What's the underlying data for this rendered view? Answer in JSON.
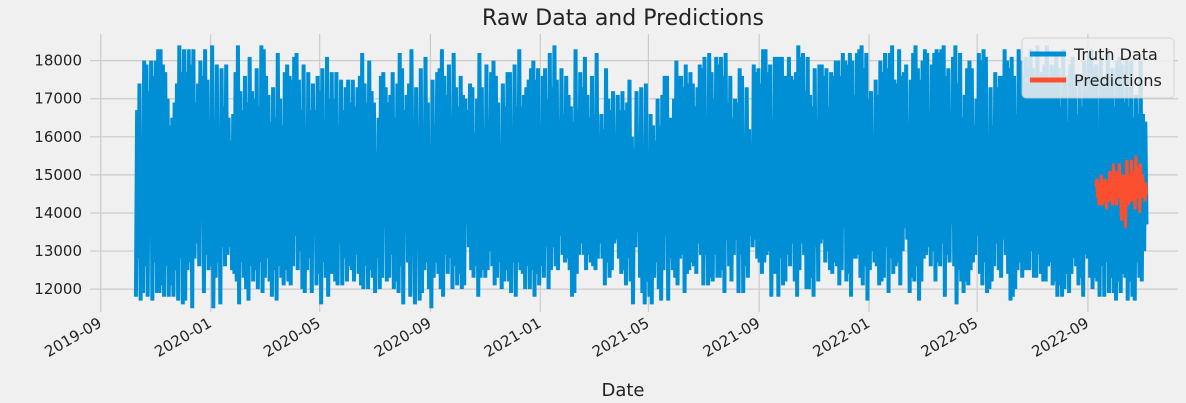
{
  "chart_data": {
    "type": "line",
    "title": "Raw Data and Predictions",
    "xlabel": "Date",
    "ylabel": "",
    "xlim": [
      "2019-08-20",
      "2022-12-10"
    ],
    "ylim": [
      11400,
      18700
    ],
    "grid": true,
    "legend_position": "top-right",
    "x_ticks": [
      {
        "date": "2019-09-01",
        "label": "2019-09"
      },
      {
        "date": "2020-01-01",
        "label": "2020-01"
      },
      {
        "date": "2020-05-01",
        "label": "2020-05"
      },
      {
        "date": "2020-09-01",
        "label": "2020-09"
      },
      {
        "date": "2021-01-01",
        "label": "2021-01"
      },
      {
        "date": "2021-05-01",
        "label": "2021-05"
      },
      {
        "date": "2021-09-01",
        "label": "2021-09"
      },
      {
        "date": "2022-01-01",
        "label": "2022-01"
      },
      {
        "date": "2022-05-01",
        "label": "2022-05"
      },
      {
        "date": "2022-09-01",
        "label": "2022-09"
      }
    ],
    "y_ticks": [
      12000,
      13000,
      14000,
      15000,
      16000,
      17000,
      18000
    ],
    "series": [
      {
        "name": "Truth Data",
        "color": "#008fd5",
        "start_date": "2019-10-10",
        "end_date": "2022-11-05",
        "values": [
          11800,
          16700,
          12800,
          17400,
          11700,
          15300,
          11900,
          18000,
          12600,
          17900,
          11800,
          17200,
          13500,
          18000,
          11700,
          17600,
          12700,
          18000,
          11900,
          18300,
          11900,
          18300,
          12100,
          17900,
          11800,
          17700,
          12600,
          17000,
          11800,
          16300,
          12100,
          16500,
          11800,
          16900,
          12500,
          17400,
          11700,
          18400,
          12800,
          17700,
          11600,
          18300,
          11700,
          17700,
          12500,
          18300,
          12700,
          17900,
          11500,
          18300,
          12800,
          16900,
          13200,
          17400,
          12600,
          18000,
          13800,
          17600,
          11900,
          18300,
          12900,
          17500,
          12500,
          16300,
          12600,
          18400,
          11500,
          16400,
          12300,
          17900,
          12700,
          16200,
          11600,
          17800,
          13100,
          16800,
          12600,
          17900,
          12900,
          16500,
          13100,
          15900,
          12500,
          16600,
          12400,
          17700,
          12200,
          18400,
          11600,
          17200,
          12700,
          16700,
          12300,
          17600,
          12000,
          16900,
          11700,
          18100,
          12600,
          17200,
          12200,
          17000,
          12500,
          17800,
          12000,
          16800,
          12700,
          18400,
          11900,
          18300,
          12300,
          17600,
          12800,
          17100,
          12200,
          16400,
          11800,
          17300,
          12500,
          16500,
          11700,
          18200,
          12600,
          17000,
          12300,
          16300,
          12100,
          17700,
          12500,
          17900,
          12200,
          17600,
          12100,
          17500,
          12600,
          18100,
          13400,
          18200,
          12500,
          17500,
          13000,
          16700,
          12000,
          17900,
          11900,
          16100,
          12500,
          17700,
          12800,
          16700,
          11900,
          17400,
          13400,
          16700,
          12100,
          17600,
          12400,
          17200,
          11600,
          17800,
          12700,
          16300,
          12300,
          18100,
          11800,
          17000,
          12400,
          17700,
          12400,
          17000,
          12200,
          17700,
          12100,
          16300,
          13200,
          17500,
          12100,
          16700,
          12800,
          17300,
          12200,
          17500,
          12600,
          16900,
          12500,
          17500,
          12200,
          16800,
          12900,
          17300,
          12400,
          17600,
          12100,
          18200,
          12000,
          17400,
          12600,
          16900,
          12000,
          18000,
          12500,
          17200,
          12300,
          16900,
          11900,
          15600,
          12800,
          16500,
          12000,
          17600,
          12300,
          17700,
          13600,
          17300,
          12200,
          16900,
          12300,
          17100,
          12900,
          17700,
          12000,
          16500,
          12200,
          17400,
          11900,
          18200,
          12600,
          17800,
          11600,
          16700,
          13500,
          17100,
          12700,
          17400,
          11800,
          18300,
          13800,
          15000,
          11600,
          17300,
          13900,
          16000,
          11700,
          17800,
          11900,
          15800,
          12500,
          18100,
          12700,
          16900,
          12000,
          15800,
          11500,
          17500,
          12300,
          16300,
          12700,
          17700,
          12400,
          17800,
          12000,
          18300,
          11800,
          17600,
          12900,
          17100,
          12400,
          17900,
          12800,
          16500,
          12000,
          18200,
          12600,
          17300,
          12100,
          16800,
          12400,
          17600,
          12000,
          17100,
          12100,
          17000,
          13700,
          16700,
          13100,
          17400,
          12500,
          17300,
          12300,
          16100,
          12600,
          17000,
          11800,
          18200,
          12300,
          17300,
          12500,
          16200,
          12300,
          17900,
          12500,
          16400,
          13000,
          17700,
          12600,
          18000,
          12100,
          17600,
          12300,
          16900,
          12700,
          15300,
          12000,
          17400,
          12200,
          16800,
          12500,
          17700,
          12200,
          17700,
          11900,
          15900,
          12700,
          17900,
          11800,
          16800,
          12700,
          18300,
          12500,
          16800,
          12400,
          17100,
          12000,
          17300,
          12600,
          17500,
          12000,
          17800,
          12500,
          18000,
          11800,
          17500,
          12400,
          17800,
          12100,
          16300,
          12600,
          17600,
          12300,
          17800,
          13100,
          17000,
          12000,
          18200,
          12500,
          17300,
          13100,
          18400,
          12600,
          17500,
          12500,
          16400,
          13400,
          17800,
          12900,
          16600,
          12700,
          17600,
          12800,
          17100,
          12500,
          16800,
          11800,
          16400,
          11900,
          18300,
          12400,
          16700,
          12900,
          17700,
          13200,
          17300,
          12900,
          18100,
          12500,
          17100,
          12900,
          16500,
          12700,
          17600,
          12600,
          16600,
          12500,
          18200,
          12800,
          15900,
          13200,
          16600,
          12800,
          16200,
          12100,
          17800,
          12700,
          17000,
          12300,
          16700,
          12500,
          17200,
          13200,
          16000,
          13300,
          17100,
          12800,
          16700,
          12400,
          17200,
          12500,
          16700,
          12100,
          16900,
          12800,
          17500,
          12200,
          16000,
          11600,
          15700,
          13100,
          17200,
          13500,
          16100,
          12300,
          17300,
          11900,
          15000,
          11600,
          17400,
          12200,
          15600,
          11800,
          16600,
          11600,
          16300,
          12300,
          15900,
          12700,
          17000,
          12000,
          16300,
          11700,
          17100,
          12500,
          17600,
          13400,
          17600,
          11700,
          16500,
          12800,
          16500,
          12500,
          17000,
          12300,
          18000,
          12100,
          17600,
          12800,
          17600,
          12900,
          17300,
          11900,
          17900,
          12400,
          17400,
          12500,
          17700,
          12700,
          17400,
          12600,
          16800,
          12400,
          17300,
          13200,
          17900,
          12900,
          17800,
          12100,
          18100,
          12900,
          16200,
          12100,
          18200,
          12300,
          17700,
          12200,
          17000,
          12900,
          18100,
          12300,
          17900,
          12300,
          18100,
          12500,
          17600,
          11900,
          18200,
          13300,
          16900,
          12600,
          17600,
          12200,
          16500,
          12900,
          17000,
          13300,
          16900,
          11900,
          17800,
          12900,
          17600,
          11900,
          15400,
          12600,
          17300,
          12300,
          16200,
          13400,
          15800,
          13100,
          17900,
          13300,
          17700,
          12800,
          17800,
          12700,
          17400,
          12400,
          18300,
          12700,
          18300,
          12900,
          17700,
          13000,
          17900,
          11800,
          16500,
          12400,
          18100,
          12400,
          18100,
          11800,
          18100,
          12800,
          18100,
          12100,
          17600,
          12200,
          17600,
          12900,
          18100,
          12600,
          17600,
          13200,
          17500,
          12200,
          17700,
          11800,
          18400,
          12500,
          18100,
          13200,
          18200,
          12900,
          17200,
          12000,
          18100,
          12000,
          17100,
          12300,
          16800,
          11800,
          17800,
          13100,
          16400,
          12200,
          17900,
          13200,
          17900,
          13300,
          17600,
          12700,
          17800,
          13000,
          16800,
          12500,
          17700,
          12400,
          17600,
          12700,
          18000,
          12600,
          18000,
          12100,
          17600,
          12500,
          18200,
          13600,
          18000,
          12200,
          17900,
          12400,
          18200,
          11800,
          18000,
          12800,
          17100,
          12800,
          18200,
          12900,
          18300,
          12300,
          18400,
          12100,
          17800,
          12600,
          18200,
          11700,
          17000,
          12500,
          17200,
          13000,
          16000,
          12700,
          17500,
          12600,
          17100,
          12100,
          18000,
          12200,
          17700,
          12300,
          18200,
          13100,
          17800,
          11900,
          18200,
          12800,
          18400,
          12400,
          17500,
          12600,
          17400,
          12700,
          18300,
          12100,
          17600,
          13000,
          17700,
          13600,
          17900,
          13300,
          16400,
          11900,
          17500,
          12300,
          18200,
          12200,
          18400,
          12600,
          17800,
          11700,
          17500,
          12200,
          18000,
          12800,
          18300,
          12900,
          18200,
          13100,
          16600,
          12600,
          17900,
          13000,
          18200,
          12200,
          18300,
          12700,
          18200,
          12600,
          18300,
          13200,
          18400,
          11800,
          17600,
          12900,
          17800,
          12700,
          16500,
          13700,
          18100,
          12600,
          18400,
          11600,
          17400,
          12500,
          18200,
          12200,
          16500,
          11900,
          17100,
          12200,
          17800,
          12100,
          18000,
          12500,
          17800,
          12700,
          16300,
          12900,
          17000,
          13400,
          18200,
          12400,
          18000,
          12100,
          18300,
          12700,
          18100,
          11900,
          16000,
          12000,
          17300,
          12200,
          16300,
          12600,
          17700,
          13200,
          17300,
          12500,
          17600,
          12300,
          17600,
          13300,
          18300,
          12900,
          18000,
          12400,
          17800,
          11700,
          18100,
          11800,
          17600,
          12000,
          16600,
          12500,
          18300,
          12700,
          18000,
          12300,
          17600,
          12500,
          18100,
          12500,
          17800,
          12500,
          18300,
          13000,
          17800,
          12300,
          17500,
          12300,
          18400,
          12900,
          17600,
          12400,
          17700,
          12200,
          17900,
          12200,
          18400,
          12600,
          17500,
          12700,
          17900,
          12100,
          17800,
          12200,
          18200,
          11800,
          17800,
          12100,
          16800,
          11800,
          18300,
          12000,
          17600,
          12400,
          16400,
          11900,
          17900,
          12400,
          18100,
          12800,
          17300,
          12600,
          16600,
          12100,
          17600,
          12300,
          16800,
          11800,
          18000,
          12900,
          17200,
          12800,
          18200,
          12300,
          18300,
          12000,
          17800,
          12300,
          17900,
          12200,
          16200,
          11800,
          18100,
          12600,
          17500,
          11800,
          17600,
          12700,
          18300,
          11900,
          17600,
          12300,
          17800,
          11900,
          16800,
          11700,
          18000,
          12200,
          18100,
          11900,
          17900,
          12400,
          16900,
          12300,
          18000,
          11700,
          16800,
          12200,
          18000,
          11800,
          16500,
          11700,
          17100,
          12700,
          16600,
          12300,
          18000,
          12200,
          16600,
          13000,
          16400,
          13700
        ]
      },
      {
        "name": "Predictions",
        "color": "#fc4f30",
        "start_date": "2022-09-10",
        "end_date": "2022-11-05",
        "values": [
          14700,
          14900,
          14400,
          14700,
          14200,
          14800,
          14400,
          15000,
          14200,
          14600,
          14800,
          14300,
          14900,
          14500,
          14100,
          14700,
          14800,
          14300,
          15100,
          14400,
          14600,
          14900,
          14200,
          15300,
          14500,
          14800,
          14600,
          14200,
          15100,
          14600,
          14400,
          15300,
          14700,
          14300,
          13800,
          14800,
          15000,
          14500,
          14900,
          13600,
          14700,
          15400,
          14500,
          14200,
          15000,
          14600,
          14300,
          15400,
          14600,
          14300,
          15100,
          14700,
          14100,
          15500,
          14800,
          14400,
          15200,
          14600,
          14000,
          15300,
          14700,
          14400,
          15000,
          14500,
          14700,
          14300,
          14800,
          14500
        ]
      }
    ]
  }
}
